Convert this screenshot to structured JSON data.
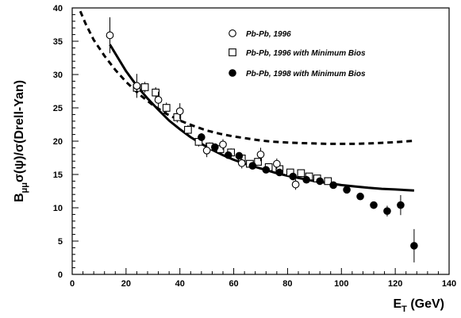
{
  "chart_data": {
    "type": "scatter",
    "xlim": [
      0,
      140
    ],
    "ylim": [
      0,
      40
    ],
    "x_ticks": [
      0,
      20,
      40,
      60,
      80,
      100,
      120,
      140
    ],
    "y_ticks": [
      0,
      5,
      10,
      15,
      20,
      25,
      30,
      35,
      40
    ],
    "x_tick_labels": [
      "0",
      "20",
      "40",
      "60",
      "80",
      "100",
      "120",
      "140"
    ],
    "y_tick_labels": [
      "0",
      "5",
      "10",
      "15",
      "20",
      "25",
      "30",
      "35",
      "40"
    ],
    "xlabel": {
      "main": "E",
      "sub": "T",
      "rest": " (GeV)"
    },
    "ylabel": {
      "b": "B",
      "sub": "μμ",
      "rest": "σ(ψ)/σ(Drell-Yan)"
    },
    "legend_position": "top-right",
    "grid": false,
    "series": [
      {
        "name": "Pb-Pb, 1996",
        "marker": "open-circle",
        "points": [
          {
            "x": 14,
            "y": 35.9,
            "err": 2.7
          },
          {
            "x": 24,
            "y": 28.3,
            "err": 1.8
          },
          {
            "x": 32,
            "y": 26.2,
            "err": 1.2
          },
          {
            "x": 40,
            "y": 24.5,
            "err": 1.2
          },
          {
            "x": 50,
            "y": 18.6,
            "err": 1.0
          },
          {
            "x": 56,
            "y": 19.5,
            "err": 0.8
          },
          {
            "x": 63,
            "y": 16.7,
            "err": 0.8
          },
          {
            "x": 70,
            "y": 18.0,
            "err": 1.0
          },
          {
            "x": 76,
            "y": 16.6,
            "err": 0.8
          },
          {
            "x": 83,
            "y": 13.5,
            "err": 0.8
          }
        ]
      },
      {
        "name": "Pb-Pb, 1996 with Minimum Bios",
        "marker": "open-square",
        "points": [
          {
            "x": 24,
            "y": 28.0,
            "err": 1.0
          },
          {
            "x": 27,
            "y": 28.1,
            "err": 0.8
          },
          {
            "x": 31,
            "y": 27.3,
            "err": 0.8
          },
          {
            "x": 35,
            "y": 25.0,
            "err": 0.8
          },
          {
            "x": 39,
            "y": 23.6,
            "err": 0.8
          },
          {
            "x": 43,
            "y": 21.7,
            "err": 0.7
          },
          {
            "x": 47,
            "y": 19.9,
            "err": 0.7
          },
          {
            "x": 51,
            "y": 19.2,
            "err": 0.6
          },
          {
            "x": 55,
            "y": 18.8,
            "err": 0.6
          },
          {
            "x": 59,
            "y": 18.3,
            "err": 0.6
          },
          {
            "x": 63,
            "y": 17.4,
            "err": 0.5
          },
          {
            "x": 66,
            "y": 16.6,
            "err": 0.5
          },
          {
            "x": 69,
            "y": 16.9,
            "err": 0.5
          },
          {
            "x": 73,
            "y": 16.1,
            "err": 0.5
          },
          {
            "x": 77,
            "y": 15.8,
            "err": 0.5
          },
          {
            "x": 81,
            "y": 15.3,
            "err": 0.5
          },
          {
            "x": 85,
            "y": 15.2,
            "err": 0.5
          },
          {
            "x": 88,
            "y": 14.7,
            "err": 0.5
          },
          {
            "x": 91,
            "y": 14.4,
            "err": 0.5
          },
          {
            "x": 95,
            "y": 14.0,
            "err": 0.5
          }
        ]
      },
      {
        "name": "Pb-Pb, 1998 with Minimum Bios",
        "marker": "filled-circle",
        "points": [
          {
            "x": 48,
            "y": 20.6,
            "err": 0.6
          },
          {
            "x": 53,
            "y": 19.1,
            "err": 0.5
          },
          {
            "x": 58,
            "y": 17.9,
            "err": 0.5
          },
          {
            "x": 62,
            "y": 17.8,
            "err": 0.5
          },
          {
            "x": 67,
            "y": 16.3,
            "err": 0.4
          },
          {
            "x": 72,
            "y": 15.7,
            "err": 0.4
          },
          {
            "x": 77,
            "y": 15.3,
            "err": 0.4
          },
          {
            "x": 82,
            "y": 14.7,
            "err": 0.4
          },
          {
            "x": 87,
            "y": 14.2,
            "err": 0.4
          },
          {
            "x": 92,
            "y": 14.0,
            "err": 0.4
          },
          {
            "x": 97,
            "y": 13.4,
            "err": 0.4
          },
          {
            "x": 102,
            "y": 12.7,
            "err": 0.4
          },
          {
            "x": 107,
            "y": 11.7,
            "err": 0.4
          },
          {
            "x": 112,
            "y": 10.4,
            "err": 0.4
          },
          {
            "x": 117,
            "y": 9.5,
            "err": 0.8
          },
          {
            "x": 122,
            "y": 10.4,
            "err": 1.5
          },
          {
            "x": 127,
            "y": 4.3,
            "err": 2.5
          }
        ]
      }
    ],
    "curves": [
      {
        "style": "dashed",
        "points": [
          [
            3,
            39.5
          ],
          [
            5,
            37.6
          ],
          [
            8,
            35.2
          ],
          [
            12,
            32.8
          ],
          [
            16,
            30.7
          ],
          [
            20,
            28.9
          ],
          [
            25,
            27.0
          ],
          [
            30,
            25.4
          ],
          [
            35,
            24.1
          ],
          [
            40,
            23.1
          ],
          [
            45,
            22.3
          ],
          [
            50,
            21.6
          ],
          [
            55,
            21.1
          ],
          [
            60,
            20.7
          ],
          [
            65,
            20.4
          ],
          [
            70,
            20.1
          ],
          [
            75,
            19.9
          ],
          [
            80,
            19.8
          ],
          [
            85,
            19.7
          ],
          [
            90,
            19.65
          ],
          [
            95,
            19.6
          ],
          [
            100,
            19.6
          ],
          [
            105,
            19.6
          ],
          [
            110,
            19.65
          ],
          [
            115,
            19.75
          ],
          [
            120,
            19.85
          ],
          [
            125,
            20.0
          ],
          [
            127,
            20.05
          ]
        ]
      },
      {
        "style": "solid",
        "points": [
          [
            14,
            34.5
          ],
          [
            17,
            32.5
          ],
          [
            20,
            30.5
          ],
          [
            24,
            28.3
          ],
          [
            28,
            26.4
          ],
          [
            32,
            24.7
          ],
          [
            36,
            23.1
          ],
          [
            40,
            21.8
          ],
          [
            44,
            20.6
          ],
          [
            48,
            19.6
          ],
          [
            52,
            18.7
          ],
          [
            56,
            17.9
          ],
          [
            60,
            17.2
          ],
          [
            65,
            16.5
          ],
          [
            70,
            15.9
          ],
          [
            75,
            15.3
          ],
          [
            80,
            14.8
          ],
          [
            85,
            14.4
          ],
          [
            90,
            14.0
          ],
          [
            95,
            13.7
          ],
          [
            100,
            13.4
          ],
          [
            105,
            13.2
          ],
          [
            110,
            13.0
          ],
          [
            115,
            12.85
          ],
          [
            120,
            12.75
          ],
          [
            127,
            12.6
          ]
        ]
      }
    ]
  }
}
